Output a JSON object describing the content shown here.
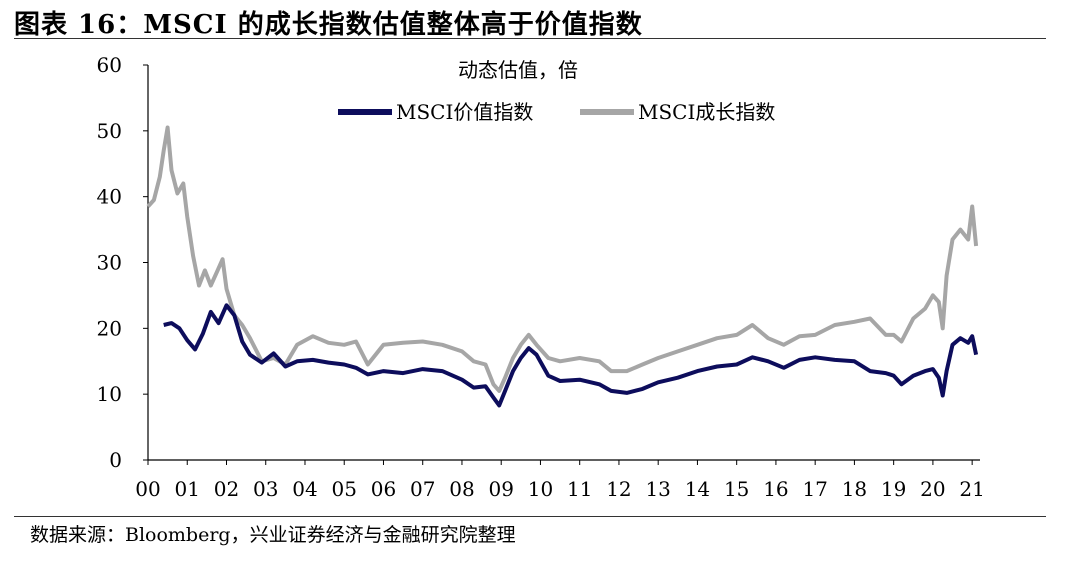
{
  "title": "图表 16：MSCI 的成长指数估值整体高于价值指数",
  "source": "数据来源：Bloomberg，兴业证券经济与金融研究院整理",
  "chart_data": {
    "type": "line",
    "title": "动态估值，倍",
    "xlabel": "",
    "ylabel": "",
    "ylim": [
      0,
      60
    ],
    "yticks": [
      "0",
      "10",
      "20",
      "30",
      "40",
      "50",
      "60"
    ],
    "xlim": [
      2000,
      2021.2
    ],
    "xticks": [
      "00",
      "01",
      "02",
      "03",
      "04",
      "05",
      "06",
      "07",
      "08",
      "09",
      "10",
      "11",
      "12",
      "13",
      "14",
      "15",
      "16",
      "17",
      "18",
      "19",
      "20",
      "21"
    ],
    "grid": false,
    "legend": "top",
    "series": [
      {
        "name": "MSCI价值指数",
        "color": "#0d0d5c",
        "x": [
          2000.4,
          2000.6,
          2000.8,
          2001.0,
          2001.2,
          2001.4,
          2001.6,
          2001.8,
          2002.0,
          2002.2,
          2002.4,
          2002.6,
          2002.9,
          2003.2,
          2003.5,
          2003.8,
          2004.2,
          2004.6,
          2005.0,
          2005.3,
          2005.6,
          2006.0,
          2006.5,
          2007.0,
          2007.5,
          2008.0,
          2008.3,
          2008.6,
          2008.8,
          2008.95,
          2009.1,
          2009.3,
          2009.5,
          2009.7,
          2009.9,
          2010.2,
          2010.5,
          2011.0,
          2011.5,
          2011.8,
          2012.2,
          2012.6,
          2013.0,
          2013.5,
          2014.0,
          2014.5,
          2015.0,
          2015.4,
          2015.8,
          2016.2,
          2016.6,
          2017.0,
          2017.5,
          2018.0,
          2018.4,
          2018.8,
          2019.0,
          2019.2,
          2019.5,
          2019.8,
          2020.0,
          2020.15,
          2020.25,
          2020.35,
          2020.5,
          2020.7,
          2020.9,
          2021.0,
          2021.1
        ],
        "values": [
          20.5,
          20.8,
          20.0,
          18.2,
          16.8,
          19.2,
          22.5,
          20.8,
          23.5,
          22.0,
          18.0,
          16.0,
          14.8,
          16.2,
          14.2,
          15.0,
          15.2,
          14.8,
          14.5,
          14.0,
          13.0,
          13.5,
          13.2,
          13.8,
          13.5,
          12.2,
          11.0,
          11.2,
          9.5,
          8.3,
          10.5,
          13.5,
          15.5,
          17.0,
          16.0,
          12.8,
          12.0,
          12.2,
          11.5,
          10.5,
          10.2,
          10.8,
          11.8,
          12.5,
          13.5,
          14.2,
          14.5,
          15.6,
          15.0,
          14.0,
          15.2,
          15.6,
          15.2,
          15.0,
          13.5,
          13.2,
          12.8,
          11.5,
          12.8,
          13.5,
          13.8,
          12.5,
          9.8,
          13.5,
          17.5,
          18.5,
          17.8,
          18.8,
          16.0
        ]
      },
      {
        "name": "MSCI成长指数",
        "color": "#a6a6a6",
        "x": [
          2000.0,
          2000.15,
          2000.3,
          2000.4,
          2000.5,
          2000.6,
          2000.75,
          2000.9,
          2001.0,
          2001.15,
          2001.3,
          2001.45,
          2001.6,
          2001.75,
          2001.9,
          2002.0,
          2002.2,
          2002.4,
          2002.6,
          2002.9,
          2003.2,
          2003.5,
          2003.8,
          2004.2,
          2004.6,
          2005.0,
          2005.3,
          2005.6,
          2006.0,
          2006.5,
          2007.0,
          2007.5,
          2008.0,
          2008.3,
          2008.6,
          2008.8,
          2008.95,
          2009.1,
          2009.3,
          2009.5,
          2009.7,
          2009.9,
          2010.2,
          2010.5,
          2011.0,
          2011.5,
          2011.8,
          2012.2,
          2012.6,
          2013.0,
          2013.5,
          2014.0,
          2014.5,
          2015.0,
          2015.4,
          2015.8,
          2016.2,
          2016.6,
          2017.0,
          2017.5,
          2018.0,
          2018.4,
          2018.8,
          2019.0,
          2019.2,
          2019.5,
          2019.8,
          2020.0,
          2020.15,
          2020.25,
          2020.35,
          2020.5,
          2020.7,
          2020.9,
          2021.0,
          2021.1
        ],
        "values": [
          38.5,
          39.5,
          43.0,
          47.0,
          50.5,
          44.0,
          40.5,
          42.0,
          37.0,
          31.0,
          26.5,
          28.8,
          26.5,
          28.5,
          30.5,
          26.0,
          22.0,
          20.5,
          18.5,
          15.0,
          15.5,
          14.5,
          17.5,
          18.8,
          17.8,
          17.5,
          18.0,
          14.5,
          17.5,
          17.8,
          18.0,
          17.5,
          16.5,
          15.0,
          14.5,
          11.5,
          10.5,
          12.5,
          15.5,
          17.5,
          19.0,
          17.5,
          15.5,
          15.0,
          15.5,
          15.0,
          13.5,
          13.5,
          14.5,
          15.5,
          16.5,
          17.5,
          18.5,
          19.0,
          20.5,
          18.5,
          17.5,
          18.8,
          19.0,
          20.5,
          21.0,
          21.5,
          19.0,
          19.0,
          18.0,
          21.5,
          23.0,
          25.0,
          24.0,
          20.0,
          28.0,
          33.5,
          35.0,
          33.5,
          38.5,
          32.5
        ]
      }
    ]
  }
}
